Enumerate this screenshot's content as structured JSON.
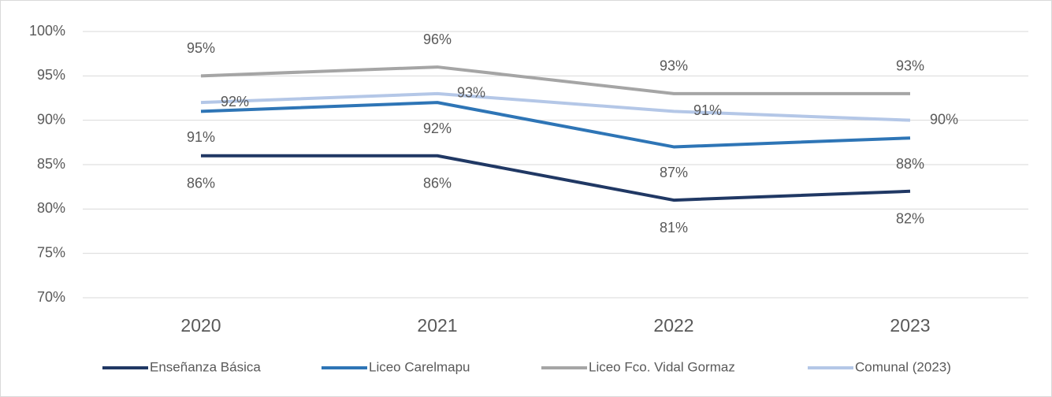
{
  "chart_data": {
    "type": "line",
    "categories": [
      "2020",
      "2021",
      "2022",
      "2023"
    ],
    "series": [
      {
        "name": "Enseñanza Básica",
        "color": "#203864",
        "values": [
          86,
          86,
          81,
          82
        ],
        "value_labels": [
          "86%",
          "86%",
          "81%",
          "82%"
        ]
      },
      {
        "name": "Liceo Carelmapu",
        "color": "#2e75b6",
        "values": [
          91,
          92,
          87,
          88
        ],
        "value_labels": [
          "91%",
          "92%",
          "87%",
          "88%"
        ]
      },
      {
        "name": "Liceo Fco. Vidal Gormaz",
        "color": "#a5a5a5",
        "values": [
          95,
          96,
          93,
          93
        ],
        "value_labels": [
          "95%",
          "96%",
          "93%",
          "93%"
        ]
      },
      {
        "name": "Comunal (2023)",
        "color": "#b4c7e7",
        "values": [
          92,
          93,
          91,
          90
        ],
        "value_labels": [
          "92%",
          "93%",
          "91%",
          "90%"
        ]
      }
    ],
    "ylim": [
      70,
      100
    ],
    "yticks": [
      {
        "value": 70,
        "label": "70%"
      },
      {
        "value": 75,
        "label": "75%"
      },
      {
        "value": 80,
        "label": "80%"
      },
      {
        "value": 85,
        "label": "85%"
      },
      {
        "value": 90,
        "label": "90%"
      },
      {
        "value": 95,
        "label": "95%"
      },
      {
        "value": 100,
        "label": "100%"
      }
    ],
    "grid": true,
    "legend": "bottom"
  }
}
